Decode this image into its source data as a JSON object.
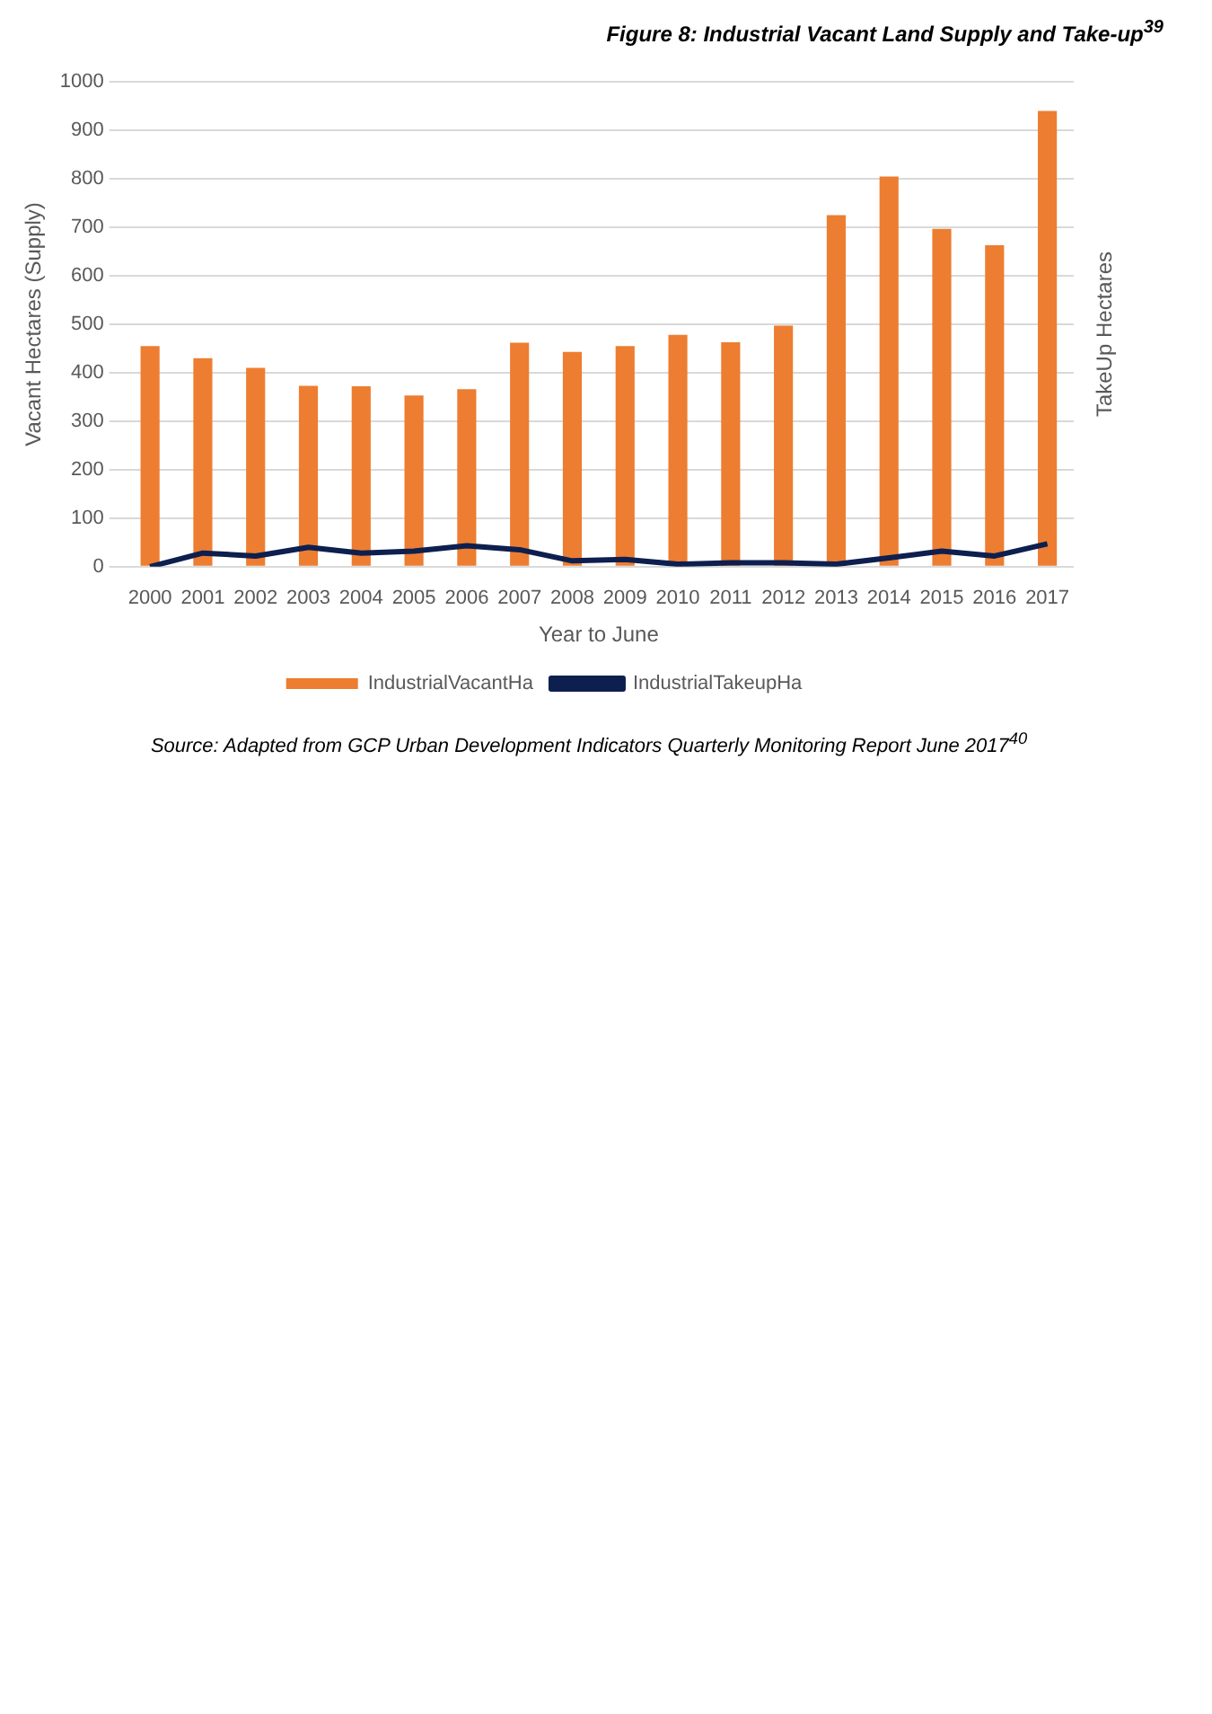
{
  "chart_data": {
    "type": "bar",
    "title": "Figure 8: Industrial Vacant Land Supply and Take-up$^{39}$",
    "categories": [
      "2000",
      "2001",
      "2002",
      "2003",
      "2004",
      "2005",
      "2006",
      "2007",
      "2008",
      "2009",
      "2010",
      "2011",
      "2012",
      "2013",
      "2014",
      "2015",
      "2016",
      "2017"
    ],
    "series": [
      {
        "name": "IndustrialVacantHa",
        "color": "#ed7d31",
        "values": [
          455,
          430,
          410,
          373,
          372,
          353,
          366,
          462,
          443,
          455,
          478,
          463,
          497,
          725,
          805,
          697,
          663,
          940
        ]
      },
      {
        "name": "IndustrialTakeupHa",
        "type": "line",
        "color": "#0d1f4f",
        "values": [
          0,
          28,
          22,
          40,
          28,
          32,
          43,
          35,
          12,
          15,
          5,
          8,
          8,
          5,
          18,
          32,
          22,
          47
        ]
      }
    ],
    "xlabel": "Year to June",
    "ylabel": "Vacant Hectares (Supply)",
    "y2label": "TakeUp Hectares",
    "ylim": [
      0,
      1000
    ],
    "yticks": [
      0,
      100,
      200,
      300,
      400,
      500,
      600,
      700,
      800,
      900,
      1000
    ],
    "grid": "y",
    "legend": "bottom",
    "marker": "none",
    "annotations": [
      "Source: Adapted from GCP Urban Development Indicators Quarterly Monitoring Report June 2017$^{40}$"
    ]
  }
}
